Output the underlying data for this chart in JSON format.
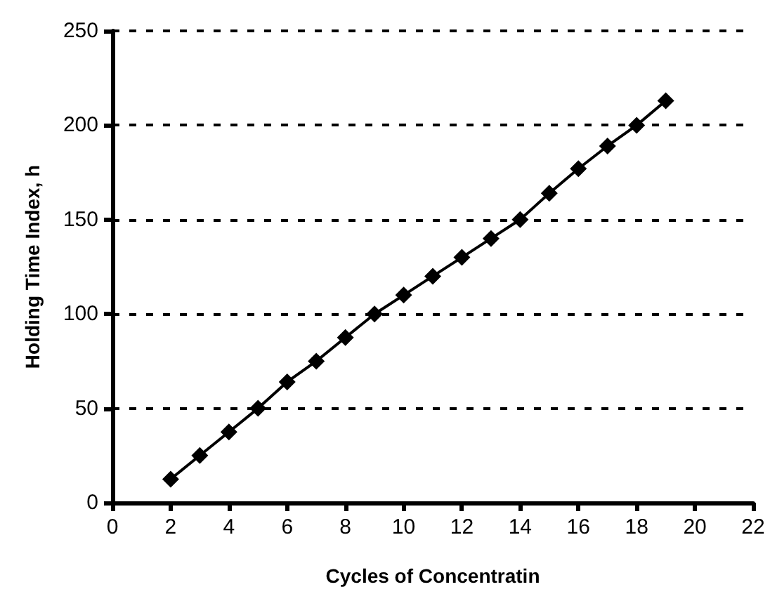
{
  "chart_data": {
    "type": "line",
    "xlabel": "Cycles of Concentratin",
    "ylabel": "Holding Time Index, h",
    "x": [
      2,
      3,
      4,
      5,
      6,
      7,
      8,
      9,
      10,
      11,
      12,
      13,
      14,
      15,
      16,
      17,
      18,
      19
    ],
    "series": [
      {
        "color": "#000000",
        "values": [
          12.5,
          25,
          37.5,
          50,
          64,
          75,
          87.5,
          100,
          110,
          120,
          130,
          140,
          150,
          164,
          177,
          189,
          200,
          213
        ]
      }
    ],
    "xlim": [
      0,
      22
    ],
    "xticks": [
      0,
      2,
      4,
      6,
      8,
      10,
      12,
      14,
      16,
      18,
      20,
      22
    ],
    "ylim": [
      0,
      250
    ],
    "yticks": [
      0,
      50,
      100,
      150,
      200,
      250
    ],
    "grid": "y",
    "marker": "diamond",
    "line_style": "solid"
  }
}
